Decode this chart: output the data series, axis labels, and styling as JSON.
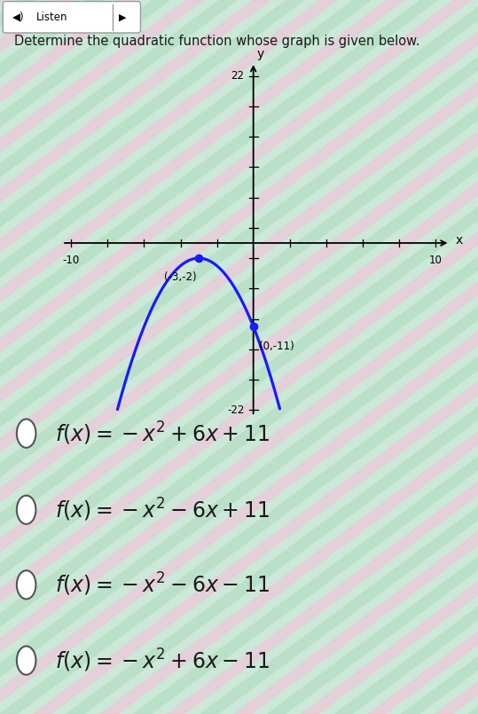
{
  "title": "Determine the quadratic function whose graph is given below.",
  "curve_color": "#1a1aff",
  "curve_coefs": [
    -1,
    -6,
    -11
  ],
  "x_range": [
    -10,
    10
  ],
  "y_range": [
    -22,
    22
  ],
  "x_tick_step": 2,
  "y_tick_step": 4,
  "axis_label_x": "x",
  "axis_label_y": "y",
  "point1": [
    -3,
    -2
  ],
  "point1_label": "(-3,-2)",
  "point2": [
    0,
    -11
  ],
  "point2_label": "(0,-11)",
  "dot_color": "#1a1aff",
  "options_latex": [
    "$f(x) = -x^2 + 6x + 11$",
    "$f(x) = -x^2 - 6x + 11$",
    "$f(x) = -x^2 - 6x - 11$",
    "$f(x) = -x^2 + 6x - 11$"
  ],
  "option_fontsize": 17,
  "text_color": "#1a1a1a",
  "stripe_color1": "#b8dfc8",
  "stripe_color2": "#e8ccd8",
  "bg_base": "#cce8d8"
}
